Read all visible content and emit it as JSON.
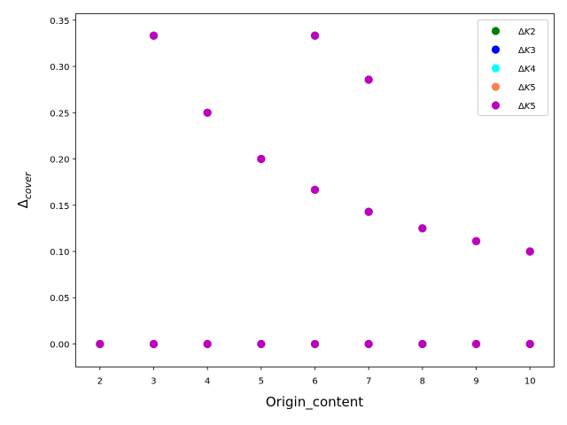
{
  "chart_data": {
    "type": "scatter",
    "xlabel": "Origin_content",
    "ylabel_main": "Δ",
    "ylabel_sub": "cover",
    "xlim": [
      1.55,
      10.45
    ],
    "ylim": [
      -0.0249,
      0.357
    ],
    "xticks": [
      2,
      3,
      4,
      5,
      6,
      7,
      8,
      9,
      10
    ],
    "yticks": [
      0.0,
      0.05,
      0.1,
      0.15,
      0.2,
      0.25,
      0.3,
      0.35
    ],
    "ytick_labels": [
      "0.00",
      "0.05",
      "0.10",
      "0.15",
      "0.20",
      "0.25",
      "0.30",
      "0.35"
    ],
    "legend_position": "top-right",
    "series": [
      {
        "name": "ΔK2",
        "name_main": "Δ",
        "name_italic": "K",
        "name_suffix": "2",
        "color": "#008000",
        "points": [
          [
            2,
            0
          ],
          [
            3,
            0
          ],
          [
            3,
            0.3333
          ],
          [
            4,
            0
          ],
          [
            4,
            0.25
          ],
          [
            5,
            0
          ],
          [
            5,
            0.2
          ],
          [
            6,
            0
          ],
          [
            6,
            0.1667
          ],
          [
            6,
            0.3333
          ],
          [
            7,
            0
          ],
          [
            7,
            0.1429
          ],
          [
            7,
            0.2857
          ],
          [
            8,
            0
          ],
          [
            8,
            0.125
          ],
          [
            9,
            0
          ],
          [
            9,
            0.1111
          ],
          [
            10,
            0
          ],
          [
            10,
            0.1
          ]
        ]
      },
      {
        "name": "ΔK3",
        "name_main": "Δ",
        "name_italic": "K",
        "name_suffix": "3",
        "color": "#0000ff",
        "points": [
          [
            2,
            0
          ],
          [
            3,
            0
          ],
          [
            3,
            0.3333
          ],
          [
            4,
            0
          ],
          [
            4,
            0.25
          ],
          [
            5,
            0
          ],
          [
            5,
            0.2
          ],
          [
            6,
            0
          ],
          [
            6,
            0.1667
          ],
          [
            6,
            0.3333
          ],
          [
            7,
            0
          ],
          [
            7,
            0.1429
          ],
          [
            7,
            0.2857
          ],
          [
            8,
            0
          ],
          [
            8,
            0.125
          ],
          [
            9,
            0
          ],
          [
            9,
            0.1111
          ],
          [
            10,
            0
          ],
          [
            10,
            0.1
          ]
        ]
      },
      {
        "name": "ΔK4",
        "name_main": "Δ",
        "name_italic": "K",
        "name_suffix": "4",
        "color": "#00ffff",
        "points": [
          [
            2,
            0
          ],
          [
            3,
            0
          ],
          [
            3,
            0.3333
          ],
          [
            4,
            0
          ],
          [
            4,
            0.25
          ],
          [
            5,
            0
          ],
          [
            5,
            0.2
          ],
          [
            6,
            0
          ],
          [
            6,
            0.1667
          ],
          [
            6,
            0.3333
          ],
          [
            7,
            0
          ],
          [
            7,
            0.1429
          ],
          [
            7,
            0.2857
          ],
          [
            8,
            0
          ],
          [
            8,
            0.125
          ],
          [
            9,
            0
          ],
          [
            9,
            0.1111
          ],
          [
            10,
            0
          ],
          [
            10,
            0.1
          ]
        ]
      },
      {
        "name": "ΔK5",
        "name_main": "Δ",
        "name_italic": "K",
        "name_suffix": "5",
        "color": "#ff7f50",
        "points": [
          [
            2,
            0
          ],
          [
            3,
            0
          ],
          [
            3,
            0.3333
          ],
          [
            4,
            0
          ],
          [
            4,
            0.25
          ],
          [
            5,
            0
          ],
          [
            5,
            0.2
          ],
          [
            6,
            0
          ],
          [
            6,
            0.1667
          ],
          [
            6,
            0.3333
          ],
          [
            7,
            0
          ],
          [
            7,
            0.1429
          ],
          [
            7,
            0.2857
          ],
          [
            8,
            0
          ],
          [
            8,
            0.125
          ],
          [
            9,
            0
          ],
          [
            9,
            0.1111
          ],
          [
            10,
            0
          ],
          [
            10,
            0.1
          ]
        ]
      },
      {
        "name": "ΔK5",
        "name_main": "Δ",
        "name_italic": "K",
        "name_suffix": "5",
        "color": "#bf00bf",
        "points": [
          [
            2,
            0
          ],
          [
            3,
            0
          ],
          [
            3,
            0.3333
          ],
          [
            4,
            0
          ],
          [
            4,
            0.25
          ],
          [
            5,
            0
          ],
          [
            5,
            0.2
          ],
          [
            6,
            0
          ],
          [
            6,
            0.1667
          ],
          [
            6,
            0.3333
          ],
          [
            7,
            0
          ],
          [
            7,
            0.1429
          ],
          [
            7,
            0.2857
          ],
          [
            8,
            0
          ],
          [
            8,
            0.125
          ],
          [
            9,
            0
          ],
          [
            9,
            0.1111
          ],
          [
            10,
            0
          ],
          [
            10,
            0.1
          ]
        ]
      }
    ]
  }
}
